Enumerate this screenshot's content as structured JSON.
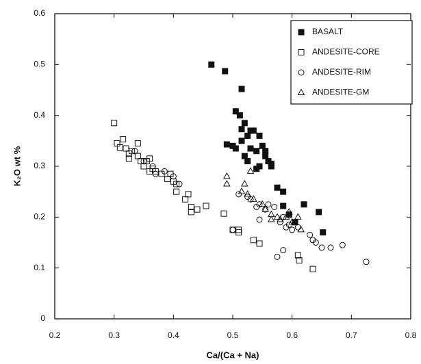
{
  "chart_data": {
    "type": "scatter",
    "x_label": "Ca/(Ca + Na)",
    "y_label": "K₂O wt %",
    "xlim": [
      0.2,
      0.8
    ],
    "xticks": [
      0.2,
      0.3,
      0.4,
      0.5,
      0.6,
      0.7,
      0.8
    ],
    "ylim": [
      0,
      0.6
    ],
    "yticks": [
      0,
      0.1,
      0.2,
      0.3,
      0.4,
      0.5,
      0.6
    ],
    "legend": "upper right",
    "series": [
      {
        "name": "BASALT",
        "color": "#111111",
        "marker": "filled-square",
        "x": [
          0.464,
          0.487,
          0.515,
          0.505,
          0.512,
          0.52,
          0.515,
          0.53,
          0.535,
          0.525,
          0.545,
          0.49,
          0.5,
          0.505,
          0.515,
          0.52,
          0.53,
          0.54,
          0.55,
          0.555,
          0.56,
          0.565,
          0.525,
          0.545,
          0.54,
          0.555,
          0.575,
          0.585,
          0.585,
          0.595,
          0.62,
          0.605,
          0.645,
          0.652,
          0.565
        ],
        "values": [
          0.5,
          0.487,
          0.452,
          0.408,
          0.4,
          0.385,
          0.373,
          0.37,
          0.37,
          0.36,
          0.36,
          0.343,
          0.34,
          0.335,
          0.35,
          0.32,
          0.335,
          0.33,
          0.34,
          0.33,
          0.31,
          0.3,
          0.31,
          0.3,
          0.295,
          0.32,
          0.258,
          0.25,
          0.222,
          0.205,
          0.225,
          0.19,
          0.21,
          0.17,
          0.305
        ]
      },
      {
        "name": "ANDESITE-CORE",
        "color": "#111111",
        "marker": "open-square",
        "x": [
          0.3,
          0.305,
          0.315,
          0.31,
          0.32,
          0.325,
          0.325,
          0.33,
          0.34,
          0.34,
          0.345,
          0.35,
          0.355,
          0.36,
          0.36,
          0.365,
          0.37,
          0.38,
          0.39,
          0.395,
          0.4,
          0.405,
          0.405,
          0.42,
          0.425,
          0.43,
          0.43,
          0.44,
          0.455,
          0.485,
          0.5,
          0.51,
          0.51,
          0.535,
          0.545,
          0.61,
          0.612,
          0.635
        ],
        "values": [
          0.385,
          0.345,
          0.353,
          0.337,
          0.335,
          0.325,
          0.315,
          0.33,
          0.345,
          0.32,
          0.31,
          0.3,
          0.31,
          0.315,
          0.29,
          0.295,
          0.29,
          0.285,
          0.275,
          0.285,
          0.27,
          0.265,
          0.25,
          0.235,
          0.245,
          0.22,
          0.21,
          0.215,
          0.222,
          0.207,
          0.175,
          0.175,
          0.17,
          0.155,
          0.148,
          0.125,
          0.115,
          0.098
        ]
      },
      {
        "name": "ANDESITE-RIM",
        "color": "#111111",
        "marker": "circle",
        "x": [
          0.335,
          0.35,
          0.365,
          0.37,
          0.385,
          0.4,
          0.41,
          0.5,
          0.51,
          0.525,
          0.53,
          0.54,
          0.545,
          0.555,
          0.56,
          0.57,
          0.58,
          0.585,
          0.59,
          0.595,
          0.6,
          0.575,
          0.585,
          0.63,
          0.635,
          0.64,
          0.65,
          0.665,
          0.685,
          0.725,
          0.545,
          0.61
        ],
        "values": [
          0.33,
          0.31,
          0.3,
          0.285,
          0.29,
          0.28,
          0.265,
          0.175,
          0.245,
          0.24,
          0.235,
          0.22,
          0.225,
          0.215,
          0.225,
          0.22,
          0.19,
          0.2,
          0.18,
          0.185,
          0.175,
          0.122,
          0.135,
          0.165,
          0.155,
          0.15,
          0.14,
          0.14,
          0.145,
          0.112,
          0.195,
          0.18
        ]
      },
      {
        "name": "ANDESITE-GM",
        "color": "#111111",
        "marker": "triangle",
        "x": [
          0.49,
          0.49,
          0.52,
          0.53,
          0.515,
          0.525,
          0.535,
          0.55,
          0.555,
          0.565,
          0.565,
          0.575,
          0.58,
          0.59,
          0.595,
          0.6,
          0.61,
          0.615
        ],
        "values": [
          0.28,
          0.265,
          0.265,
          0.29,
          0.25,
          0.245,
          0.235,
          0.225,
          0.215,
          0.205,
          0.195,
          0.2,
          0.195,
          0.2,
          0.21,
          0.19,
          0.2,
          0.175
        ]
      }
    ]
  }
}
